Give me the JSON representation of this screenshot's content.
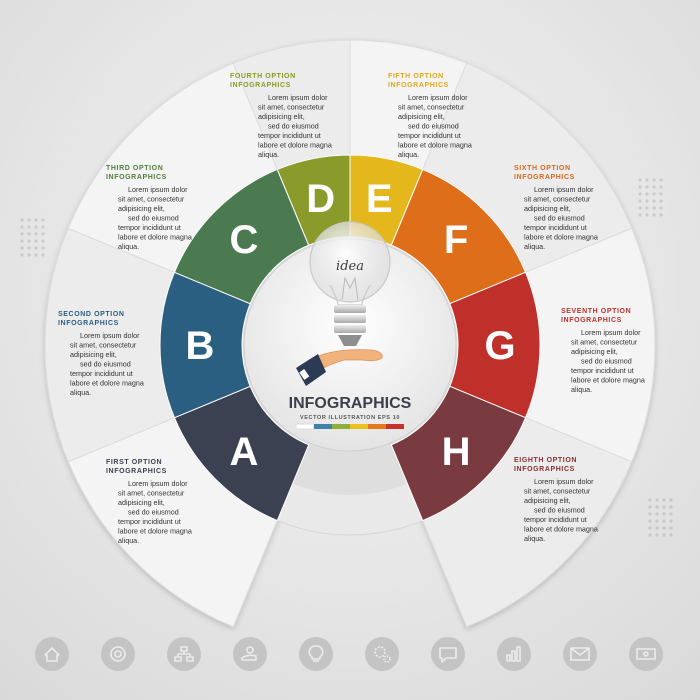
{
  "center": {
    "title": "INFOGRAPHICS",
    "subtitle": "VECTOR ILLUSTRATION EPS 10",
    "idea_label": "idea",
    "palette": [
      "#ffffff",
      "#3e82a8",
      "#8fae3a",
      "#e9c21e",
      "#e7781c",
      "#c8322a"
    ]
  },
  "options": [
    {
      "letter": "A",
      "title": "FIRST OPTION",
      "subtitle": "INFOGRAPHICS",
      "color": "#3c4152",
      "text_color": "#3c4152",
      "body": [
        "Lorem ipsum dolor",
        "sit amet, consectetur",
        "adipisicing elit,",
        "sed do eiusmod",
        "tempor incididunt ut",
        "labore et dolore magna",
        "aliqua."
      ]
    },
    {
      "letter": "B",
      "title": "SECOND OPTION",
      "subtitle": "INFOGRAPHICS",
      "color": "#2b5f82",
      "text_color": "#2b5f82",
      "body": [
        "Lorem ipsum dolor",
        "sit amet, consectetur",
        "adipisicing elit,",
        "sed do eiusmod",
        "tempor incididunt ut",
        "labore et dolore magna",
        "aliqua."
      ]
    },
    {
      "letter": "C",
      "title": "THIRD OPTION",
      "subtitle": "INFOGRAPHICS",
      "color": "#4b7a50",
      "text_color": "#4f7d3b",
      "body": [
        "Lorem ipsum dolor",
        "sit amet, consectetur",
        "adipisicing elit,",
        "sed do eiusmod",
        "tempor incididunt ut",
        "labore et dolore magna",
        "aliqua."
      ]
    },
    {
      "letter": "D",
      "title": "FOURTH OPTION",
      "subtitle": "INFOGRAPHICS",
      "color": "#8a9b2c",
      "text_color": "#8a9a22",
      "body": [
        "Lorem ipsum dolor",
        "sit amet, consectetur",
        "adipisicing elit,",
        "sed do eiusmod",
        "tempor incididunt ut",
        "labore et dolore magna",
        "aliqua."
      ]
    },
    {
      "letter": "E",
      "title": "FIFTH OPTION",
      "subtitle": "INFOGRAPHICS",
      "color": "#e4b81c",
      "text_color": "#e0a81a",
      "body": [
        "Lorem ipsum dolor",
        "sit amet, consectetur",
        "adipisicing elit,",
        "sed do eiusmod",
        "tempor incididunt ut",
        "labore et dolore magna",
        "aliqua."
      ]
    },
    {
      "letter": "F",
      "title": "SIXTH OPTION",
      "subtitle": "INFOGRAPHICS",
      "color": "#de6e1a",
      "text_color": "#d9661a",
      "body": [
        "Lorem ipsum dolor",
        "sit amet, consectetur",
        "adipisicing elit,",
        "sed do eiusmod",
        "tempor incididunt ut",
        "labore et dolore magna",
        "aliqua."
      ]
    },
    {
      "letter": "G",
      "title": "SEVENTH OPTION",
      "subtitle": "INFOGRAPHICS",
      "color": "#c0302a",
      "text_color": "#c0302a",
      "body": [
        "Lorem ipsum dolor",
        "sit amet, consectetur",
        "adipisicing elit,",
        "sed do eiusmod",
        "tempor incididunt ut",
        "labore et dolore magna",
        "aliqua."
      ]
    },
    {
      "letter": "H",
      "title": "EIGHTH OPTION",
      "subtitle": "INFOGRAPHICS",
      "color": "#7a3b40",
      "text_color": "#8a2f30",
      "body": [
        "Lorem ipsum dolor",
        "sit amet, consectetur",
        "adipisicing elit,",
        "sed do eiusmod",
        "tempor incididunt ut",
        "labore et dolore magna",
        "aliqua."
      ]
    }
  ],
  "bottom_icons": [
    "home-icon",
    "target-icon",
    "hierarchy-icon",
    "money-hand-icon",
    "lightbulb-icon",
    "gears-icon",
    "chat-icon",
    "bar-chart-icon",
    "mail-icon",
    "cash-icon"
  ]
}
